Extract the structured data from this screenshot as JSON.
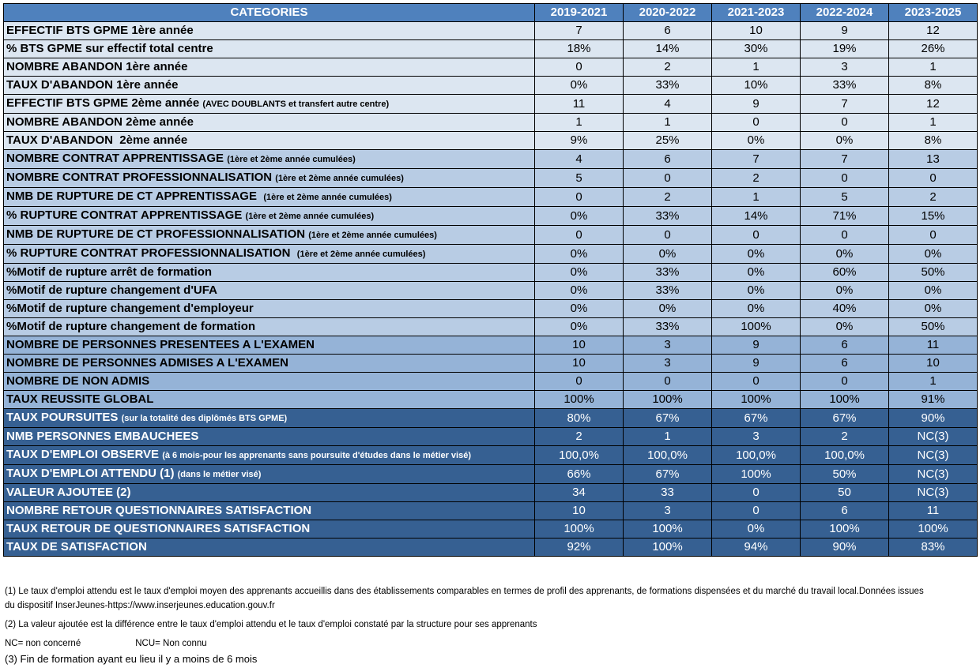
{
  "table": {
    "header": {
      "category": "CATEGORIES",
      "years": [
        "2019-2021",
        "2020-2022",
        "2021-2023",
        "2022-2024",
        "2023-2025"
      ]
    },
    "rows": [
      {
        "label": "EFFECTIF BTS GPME 1ère année",
        "sub": "",
        "values": [
          "7",
          "6",
          "10",
          "9",
          "12"
        ],
        "shade": "s1"
      },
      {
        "label": "% BTS GPME sur effectif total centre",
        "sub": "",
        "values": [
          "18%",
          "14%",
          "30%",
          "19%",
          "26%"
        ],
        "shade": "s1"
      },
      {
        "label": "NOMBRE ABANDON 1ère année",
        "sub": "",
        "values": [
          "0",
          "2",
          "1",
          "3",
          "1"
        ],
        "shade": "s1"
      },
      {
        "label": "TAUX D'ABANDON 1ère année",
        "sub": "",
        "values": [
          "0%",
          "33%",
          "10%",
          "33%",
          "8%"
        ],
        "shade": "s1"
      },
      {
        "label": "EFFECTIF BTS GPME 2ème année ",
        "sub": "(AVEC DOUBLANTS et transfert autre centre)",
        "values": [
          "11",
          "4",
          "9",
          "7",
          "12"
        ],
        "shade": "s1"
      },
      {
        "label": "NOMBRE ABANDON 2ème année",
        "sub": "",
        "values": [
          "1",
          "1",
          "0",
          "0",
          "1"
        ],
        "shade": "s1"
      },
      {
        "label": "TAUX D'ABANDON  2ème année",
        "sub": "",
        "values": [
          "9%",
          "25%",
          "0%",
          "0%",
          "8%"
        ],
        "shade": "s1"
      },
      {
        "label": "NOMBRE CONTRAT APPRENTISSAGE ",
        "sub": "(1ère et 2ème année cumulées)",
        "values": [
          "4",
          "6",
          "7",
          "7",
          "13"
        ],
        "shade": "s2"
      },
      {
        "label": "NOMBRE CONTRAT PROFESSIONNALISATION ",
        "sub": "(1ère et 2ème année cumulées)",
        "values": [
          "5",
          "0",
          "2",
          "0",
          "0"
        ],
        "shade": "s2"
      },
      {
        "label": "NMB DE RUPTURE DE CT APPRENTISSAGE  ",
        "sub": "(1ère et 2ème année cumulées)",
        "values": [
          "0",
          "2",
          "1",
          "5",
          "2"
        ],
        "shade": "s2"
      },
      {
        "label": "% RUPTURE CONTRAT APPRENTISSAGE ",
        "sub": "(1ère et 2ème année cumulées)",
        "values": [
          "0%",
          "33%",
          "14%",
          "71%",
          "15%"
        ],
        "shade": "s2"
      },
      {
        "label": "NMB DE RUPTURE DE CT PROFESSIONNALISATION ",
        "sub": "(1ère et 2ème année cumulées)",
        "values": [
          "0",
          "0",
          "0",
          "0",
          "0"
        ],
        "shade": "s2"
      },
      {
        "label": "% RUPTURE CONTRAT PROFESSIONNALISATION  ",
        "sub": "(1ère et 2ème année cumulées)",
        "values": [
          "0%",
          "0%",
          "0%",
          "0%",
          "0%"
        ],
        "shade": "s2"
      },
      {
        "label": "%Motif de rupture arrêt de formation",
        "sub": "",
        "values": [
          "0%",
          "33%",
          "0%",
          "60%",
          "50%"
        ],
        "shade": "s2"
      },
      {
        "label": "%Motif de rupture changement d'UFA",
        "sub": "",
        "values": [
          "0%",
          "33%",
          "0%",
          "0%",
          "0%"
        ],
        "shade": "s2"
      },
      {
        "label": "%Motif de rupture changement d'employeur",
        "sub": "",
        "values": [
          "0%",
          "0%",
          "0%",
          "40%",
          "0%"
        ],
        "shade": "s2"
      },
      {
        "label": "%Motif de rupture changement de formation",
        "sub": "",
        "values": [
          "0%",
          "33%",
          "100%",
          "0%",
          "50%"
        ],
        "shade": "s2"
      },
      {
        "label": "NOMBRE DE PERSONNES PRESENTEES A L'EXAMEN",
        "sub": "",
        "values": [
          "10",
          "3",
          "9",
          "6",
          "11"
        ],
        "shade": "s3"
      },
      {
        "label": "NOMBRE DE PERSONNES ADMISES A L'EXAMEN",
        "sub": "",
        "values": [
          "10",
          "3",
          "9",
          "6",
          "10"
        ],
        "shade": "s3"
      },
      {
        "label": "NOMBRE DE NON ADMIS",
        "sub": "",
        "values": [
          "0",
          "0",
          "0",
          "0",
          "1"
        ],
        "shade": "s3"
      },
      {
        "label": "TAUX REUSSITE GLOBAL",
        "sub": "",
        "values": [
          "100%",
          "100%",
          "100%",
          "100%",
          "91%"
        ],
        "shade": "s3"
      },
      {
        "label": "TAUX POURSUITES ",
        "sub": "(sur la totalité des diplômés BTS GPME)",
        "values": [
          "80%",
          "67%",
          "67%",
          "67%",
          "90%"
        ],
        "shade": "s4"
      },
      {
        "label": "NMB PERSONNES EMBAUCHEES",
        "sub": "",
        "values": [
          "2",
          "1",
          "3",
          "2",
          "NC(3)"
        ],
        "shade": "s4"
      },
      {
        "label": "TAUX D'EMPLOI OBSERVE ",
        "sub": "(à 6 mois-pour les apprenants sans poursuite d'études dans le métier visé)",
        "values": [
          "100,0%",
          "100,0%",
          "100,0%",
          "100,0%",
          "NC(3)"
        ],
        "shade": "s4"
      },
      {
        "label": "TAUX D'EMPLOI ATTENDU (1) ",
        "sub": "(dans le métier visé)",
        "values": [
          "66%",
          "67%",
          "100%",
          "50%",
          "NC(3)"
        ],
        "shade": "s4"
      },
      {
        "label": "VALEUR AJOUTEE (2)",
        "sub": "",
        "values": [
          "34",
          "33",
          "0",
          "50",
          "NC(3)"
        ],
        "shade": "s4"
      },
      {
        "label": "NOMBRE RETOUR QUESTIONNAIRES SATISFACTION",
        "sub": "",
        "values": [
          "10",
          "3",
          "0",
          "6",
          "11"
        ],
        "shade": "s4"
      },
      {
        "label": "TAUX RETOUR DE QUESTIONNAIRES SATISFACTION",
        "sub": "",
        "values": [
          "100%",
          "100%",
          "0%",
          "100%",
          "100%"
        ],
        "shade": "s4"
      },
      {
        "label": "TAUX DE SATISFACTION",
        "sub": "",
        "values": [
          "92%",
          "100%",
          "94%",
          "90%",
          "83%"
        ],
        "shade": "s4"
      }
    ]
  },
  "colors": {
    "header": "#4f81bd",
    "section1": "#dce6f1",
    "section2": "#b8cce4",
    "section3": "#95b3d7",
    "section4": "#366092"
  },
  "notes": {
    "note1_line1": "(1) Le taux d'emploi attendu est le taux d'emploi moyen des apprenants accueillis dans des établissements comparables en termes de profil des apprenants, de formations dispensées et du marché du travail local.Données issues",
    "note1_line2": "du dispositif InserJeunes-https://www.inserjeunes.education.gouv.fr",
    "note2": "(2) La valeur ajoutée est la différence entre le taux d'emploi attendu et le taux d'emploi constaté par la structure pour ses apprenants",
    "nc": "NC= non concerné",
    "ncu": "NCU= Non connu",
    "note3": "(3) Fin de formation ayant eu lieu il y a moins de 6 mois"
  }
}
